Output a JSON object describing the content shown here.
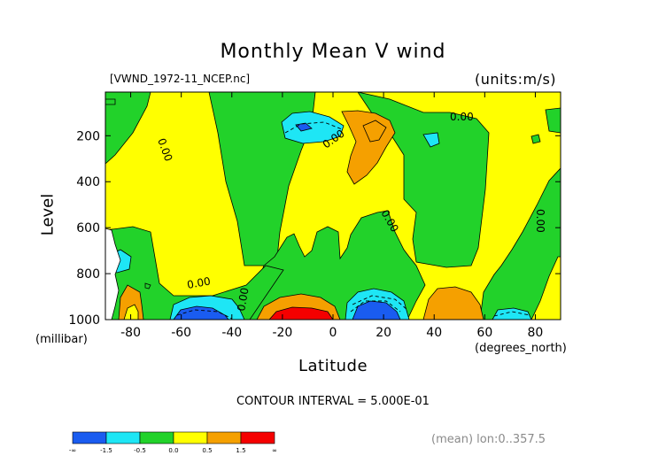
{
  "chart_data": {
    "type": "heatmap",
    "title": "Monthly Mean V wind",
    "dataset_label": "[VWND_1972-11_NCEP.nc]",
    "units_label": "(units:m/s)",
    "ylabel": "Level",
    "ylabel_unit": "(millibar)",
    "xlabel": "Latitude",
    "xlabel_unit": "(degrees_north)",
    "xlim": [
      -90,
      90
    ],
    "ylim": [
      1000,
      10
    ],
    "x_ticks": [
      -80,
      -60,
      -40,
      -20,
      0,
      20,
      40,
      60,
      80
    ],
    "y_ticks": [
      200,
      400,
      600,
      800,
      1000
    ],
    "contour_interval_text": "CONTOUR INTERVAL = 5.000E-01",
    "contour_labels": [
      "0.00",
      "0.00",
      "0.00",
      "0.00",
      "0.00",
      "0.00",
      "0.00"
    ],
    "mean_note": "(mean) lon:0..357.5",
    "colorbar": {
      "colors": [
        "#1a5cf0",
        "#1ee6f5",
        "#22d22a",
        "#ffff00",
        "#f5a000",
        "#f50000"
      ],
      "labels": [
        "-∞",
        "-1.5",
        "-0.5",
        "0.0",
        "0.5",
        "1.5",
        "∞"
      ]
    }
  }
}
